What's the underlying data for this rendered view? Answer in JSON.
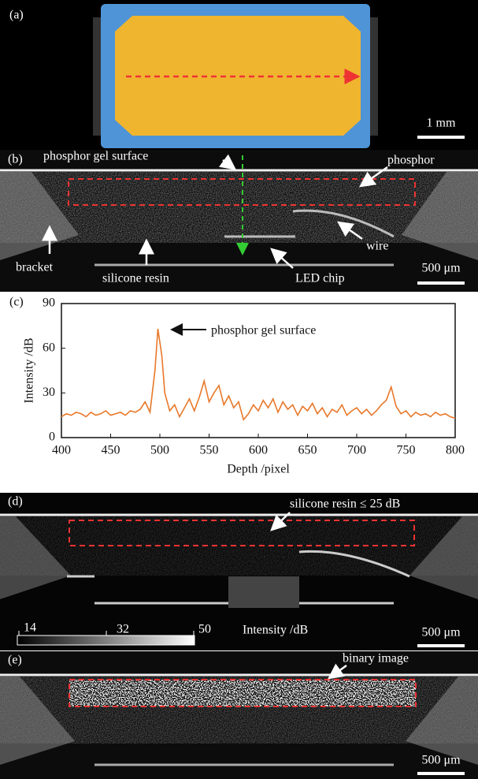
{
  "panels": {
    "a": {
      "label": "(a)",
      "scale_bar": "1 mm"
    },
    "b": {
      "label": "(b)",
      "annotations": [
        "phosphor gel surface",
        "phosphor",
        "bracket",
        "silicone resin",
        "LED chip",
        "wire"
      ],
      "scale_bar": "500 μm"
    },
    "d": {
      "label": "(d)",
      "annotation": "silicone resin ≤ 25 dB",
      "colorbar": {
        "ticks": [
          "14",
          "32",
          "50"
        ],
        "label": "Intensity /dB"
      },
      "scale_bar": "500 μm"
    },
    "e": {
      "label": "(e)",
      "annotation": "binary image",
      "scale_bar": "500 μm"
    }
  },
  "chart_data": {
    "type": "line",
    "panel_label": "(c)",
    "annotation": "phosphor gel surface",
    "x_label": "Depth /pixel",
    "y_label": "Intensity /dB",
    "x": [
      400,
      405,
      410,
      415,
      420,
      425,
      430,
      435,
      440,
      445,
      450,
      455,
      460,
      465,
      470,
      475,
      480,
      485,
      490,
      495,
      498,
      502,
      505,
      510,
      515,
      520,
      525,
      530,
      535,
      540,
      545,
      550,
      555,
      560,
      565,
      570,
      575,
      580,
      585,
      590,
      595,
      600,
      605,
      610,
      615,
      620,
      625,
      630,
      635,
      640,
      645,
      650,
      655,
      660,
      665,
      670,
      675,
      680,
      685,
      690,
      695,
      700,
      705,
      710,
      715,
      720,
      725,
      730,
      735,
      740,
      745,
      750,
      755,
      760,
      765,
      770,
      775,
      780,
      785,
      790,
      795,
      800
    ],
    "values": [
      14,
      16,
      15,
      17,
      16,
      14,
      17,
      15,
      16,
      18,
      15,
      16,
      17,
      15,
      18,
      17,
      19,
      24,
      17,
      45,
      73,
      55,
      30,
      18,
      22,
      14,
      20,
      26,
      18,
      27,
      38,
      24,
      30,
      35,
      22,
      28,
      20,
      24,
      12,
      16,
      22,
      18,
      25,
      20,
      26,
      17,
      24,
      19,
      22,
      15,
      21,
      18,
      23,
      16,
      20,
      14,
      19,
      17,
      22,
      15,
      18,
      20,
      16,
      19,
      15,
      18,
      22,
      25,
      34,
      21,
      16,
      18,
      14,
      17,
      15,
      16,
      14,
      17,
      15,
      16,
      14,
      13
    ],
    "color": "#e8782a",
    "xlim": [
      400,
      800
    ],
    "ylim": [
      0,
      90
    ],
    "xticks": [
      400,
      450,
      500,
      550,
      600,
      650,
      700,
      750,
      800
    ],
    "yticks": [
      0,
      30,
      60,
      90
    ]
  }
}
